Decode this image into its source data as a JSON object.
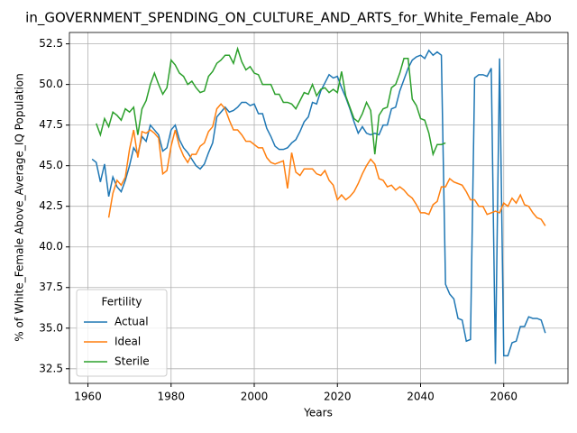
{
  "chart_data": {
    "type": "line",
    "title": "in_GOVERNMENT_SPENDING_ON_CULTURE_AND_ARTS_for_White_Female_Abo",
    "xlabel": "Years",
    "ylabel": "% of White_Female Above_Average_IQ Population",
    "x": [
      1961,
      1962,
      1963,
      1964,
      1965,
      1966,
      1967,
      1968,
      1969,
      1970,
      1971,
      1972,
      1973,
      1974,
      1975,
      1976,
      1977,
      1978,
      1979,
      1980,
      1981,
      1982,
      1983,
      1984,
      1985,
      1986,
      1987,
      1988,
      1989,
      1990,
      1991,
      1992,
      1993,
      1994,
      1995,
      1996,
      1997,
      1998,
      1999,
      2000,
      2001,
      2002,
      2003,
      2004,
      2005,
      2006,
      2007,
      2008,
      2009,
      2010,
      2011,
      2012,
      2013,
      2014,
      2015,
      2016,
      2017,
      2018,
      2019,
      2020,
      2021,
      2022,
      2023,
      2024,
      2025,
      2026,
      2027,
      2028,
      2029,
      2030,
      2031,
      2032,
      2033,
      2034,
      2035,
      2036,
      2037,
      2038,
      2039,
      2040,
      2041,
      2042,
      2043,
      2044,
      2045,
      2046,
      2047,
      2048,
      2049,
      2050,
      2051,
      2052,
      2053,
      2054,
      2055,
      2056,
      2057,
      2058,
      2059,
      2060,
      2061,
      2062,
      2063,
      2064,
      2065,
      2066,
      2067,
      2068,
      2069,
      2070
    ],
    "series": [
      {
        "name": "Actual",
        "color": "#1f77b4",
        "values": [
          45.4,
          45.2,
          44.0,
          45.1,
          43.1,
          44.3,
          43.7,
          43.4,
          44.1,
          45.0,
          46.1,
          45.7,
          46.8,
          46.5,
          47.5,
          47.2,
          46.9,
          45.9,
          46.1,
          47.2,
          47.5,
          46.6,
          46.1,
          45.8,
          45.4,
          45.0,
          44.8,
          45.1,
          45.8,
          46.4,
          48.0,
          48.3,
          48.6,
          48.3,
          48.4,
          48.6,
          48.9,
          48.9,
          48.7,
          48.8,
          48.2,
          48.2,
          47.3,
          46.8,
          46.2,
          46.0,
          46.0,
          46.1,
          46.4,
          46.6,
          47.1,
          47.7,
          48.0,
          48.9,
          48.8,
          49.6,
          50.1,
          50.6,
          50.4,
          50.5,
          49.8,
          49.2,
          48.5,
          47.7,
          47.0,
          47.4,
          47.0,
          46.9,
          47.0,
          46.9,
          47.5,
          47.5,
          48.5,
          48.6,
          49.6,
          50.3,
          51.0,
          51.5,
          51.7,
          51.8,
          51.6,
          52.1,
          51.8,
          52.0,
          51.8,
          37.7,
          37.1,
          36.8,
          35.6,
          35.5,
          34.2,
          34.3,
          50.4,
          50.6,
          50.6,
          50.5,
          51.0,
          32.8,
          51.6,
          33.3,
          33.3,
          34.1,
          34.2,
          35.1,
          35.1,
          35.7,
          35.6,
          35.6,
          35.5,
          34.7
        ]
      },
      {
        "name": "Ideal",
        "color": "#ff7f0e",
        "values": [
          null,
          null,
          null,
          null,
          41.8,
          43.3,
          44.1,
          43.8,
          44.3,
          46.0,
          47.2,
          45.5,
          47.1,
          47.0,
          47.2,
          47.0,
          46.7,
          44.5,
          44.7,
          46.2,
          47.2,
          46.2,
          45.6,
          45.2,
          45.7,
          45.7,
          46.2,
          46.4,
          47.1,
          47.4,
          48.5,
          48.8,
          48.5,
          47.8,
          47.2,
          47.2,
          46.9,
          46.5,
          46.5,
          46.3,
          46.1,
          46.1,
          45.5,
          45.2,
          45.1,
          45.2,
          45.3,
          43.6,
          45.8,
          44.6,
          44.4,
          44.8,
          44.8,
          44.8,
          44.5,
          44.4,
          44.7,
          44.1,
          43.8,
          42.9,
          43.2,
          42.9,
          43.1,
          43.4,
          43.9,
          44.5,
          45.0,
          45.4,
          45.1,
          44.2,
          44.1,
          43.7,
          43.8,
          43.5,
          43.7,
          43.5,
          43.2,
          43.0,
          42.6,
          42.1,
          42.1,
          42.0,
          42.6,
          42.8,
          43.7,
          43.7,
          44.2,
          44.0,
          43.9,
          43.8,
          43.4,
          42.9,
          42.9,
          42.5,
          42.5,
          42.0,
          42.1,
          42.2,
          42.1,
          42.7,
          42.5,
          43.0,
          42.7,
          43.2,
          42.6,
          42.5,
          42.1,
          41.8,
          41.7,
          41.3
        ]
      },
      {
        "name": "Sterile",
        "color": "#2ca02c",
        "values": [
          null,
          47.6,
          46.9,
          47.9,
          47.4,
          48.3,
          48.1,
          47.8,
          48.5,
          48.3,
          48.6,
          46.9,
          48.5,
          49.0,
          50.0,
          50.7,
          50.0,
          49.4,
          49.8,
          51.5,
          51.2,
          50.7,
          50.5,
          50.0,
          50.2,
          49.8,
          49.5,
          49.6,
          50.5,
          50.8,
          51.3,
          51.5,
          51.8,
          51.8,
          51.3,
          52.2,
          51.4,
          50.9,
          51.1,
          50.7,
          50.6,
          50.0,
          50.0,
          50.0,
          49.4,
          49.4,
          48.9,
          48.9,
          48.8,
          48.5,
          49.0,
          49.5,
          49.4,
          50.0,
          49.3,
          49.7,
          49.8,
          49.5,
          49.7,
          49.5,
          50.8,
          49.3,
          48.6,
          47.9,
          47.7,
          48.2,
          48.9,
          48.4,
          45.7,
          48.1,
          48.5,
          48.6,
          49.8,
          50.0,
          50.7,
          51.6,
          51.6,
          49.1,
          48.7,
          47.9,
          47.8,
          47.0,
          45.7,
          46.3,
          46.3,
          46.4,
          null,
          null,
          null,
          null,
          null,
          null,
          null,
          null,
          null,
          null,
          null,
          null,
          null,
          null,
          null,
          null,
          null,
          null,
          null,
          null,
          null,
          null,
          null,
          null
        ]
      }
    ],
    "xlim": [
      1955.55,
      2075.45
    ],
    "xticks": [
      1960,
      1980,
      2000,
      2020,
      2040,
      2060
    ],
    "ylim": [
      31.6,
      53.2
    ],
    "yticks": [
      32.5,
      {
        "value": 35,
        "label": "35.0"
      },
      37.5,
      {
        "value": 40,
        "label": "40.0"
      },
      42.5,
      {
        "value": 45,
        "label": "45.0"
      },
      47.5,
      {
        "value": 50,
        "label": "50.0"
      },
      52.5
    ],
    "grid": true,
    "legend": {
      "title": "Fertility",
      "loc": "lower left"
    }
  }
}
